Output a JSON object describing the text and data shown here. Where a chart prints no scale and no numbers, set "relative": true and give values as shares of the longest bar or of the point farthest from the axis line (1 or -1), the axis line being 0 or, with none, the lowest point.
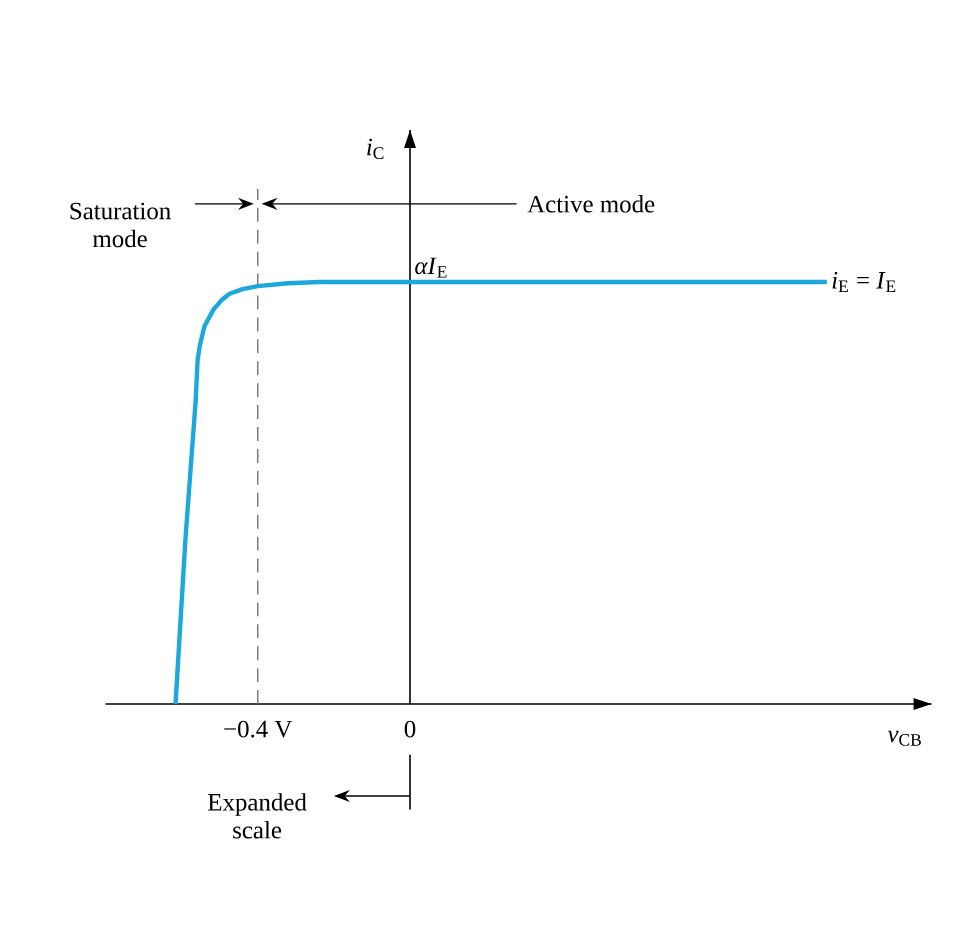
{
  "chart_data": {
    "type": "line",
    "relative": true,
    "xlabel": "*v*$_{CB}$",
    "ylabel": "*i*$_{C}$",
    "x": [
      -0.616,
      -0.59,
      -0.563,
      -0.558,
      -0.552,
      -0.54,
      -0.516,
      -0.495,
      -0.474,
      -0.44,
      -0.4,
      -0.32,
      -0.237,
      1.095
    ],
    "series": [
      {
        "name": "*i*$_{E}$ = *I*$_{E}$",
        "color": "#1ea7dc",
        "values": [
          0,
          0.39,
          0.72,
          0.815,
          0.85,
          0.895,
          0.935,
          0.957,
          0.972,
          0.983,
          0.99,
          0.997,
          1,
          1
        ]
      }
    ],
    "xlim": [
      -0.8,
      1.37
    ],
    "xticks": [
      {
        "value": -0.4,
        "label": "−0.4 V"
      },
      0
    ],
    "ref_lines": [
      {
        "axis": "x",
        "value": -0.4,
        "line_style": "dashed"
      }
    ],
    "annotations": [
      "Saturation mode",
      "Active mode",
      "Expanded scale",
      {
        "text": "*αI*$_{E}$",
        "x": 0,
        "y": 1
      }
    ]
  }
}
